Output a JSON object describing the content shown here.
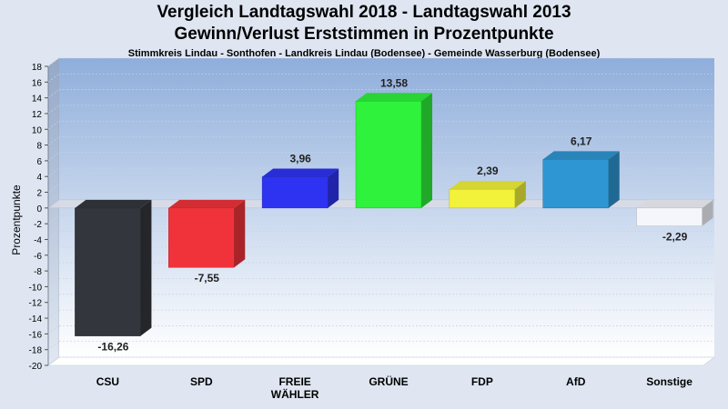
{
  "header": {
    "title_line1": "Vergleich Landtagswahl 2018 - Landtagswahl 2013",
    "title_line2": "Gewinn/Verlust Erststimmen in Prozentpunkte",
    "subtitle": "Stimmkreis Lindau - Sonthofen - Landkreis Lindau (Bodensee) - Gemeinde Wasserburg (Bodensee)"
  },
  "chart_data": {
    "type": "bar",
    "title": "Vergleich Landtagswahl 2018 - Landtagswahl 2013 / Gewinn/Verlust Erststimmen in Prozentpunkte",
    "subtitle": "Stimmkreis Lindau - Sonthofen - Landkreis Lindau (Bodensee) - Gemeinde Wasserburg (Bodensee)",
    "xlabel": "",
    "ylabel": "Prozentpunkte",
    "ylim": [
      -20,
      18
    ],
    "yticks": [
      18,
      16,
      14,
      12,
      10,
      8,
      6,
      4,
      2,
      0,
      -2,
      -4,
      -6,
      -8,
      -10,
      -12,
      -14,
      -16,
      -18,
      -20
    ],
    "grid": true,
    "categories": [
      {
        "lines": [
          "CSU"
        ]
      },
      {
        "lines": [
          "SPD"
        ]
      },
      {
        "lines": [
          "FREIE",
          "WÄHLER"
        ]
      },
      {
        "lines": [
          "GRÜNE"
        ]
      },
      {
        "lines": [
          "FDP"
        ]
      },
      {
        "lines": [
          "AfD"
        ]
      },
      {
        "lines": [
          "Sonstige"
        ]
      }
    ],
    "values": [
      -16.26,
      -7.55,
      3.96,
      13.58,
      2.39,
      6.17,
      -2.29
    ],
    "value_labels": [
      "-16,26",
      "-7,55",
      "3,96",
      "13,58",
      "2,39",
      "6,17",
      "-2,29"
    ],
    "colors": [
      "#33363c",
      "#f0333b",
      "#2e33f2",
      "#2ef23b",
      "#f2f23a",
      "#2e96d2",
      "#f4f6fb"
    ]
  }
}
